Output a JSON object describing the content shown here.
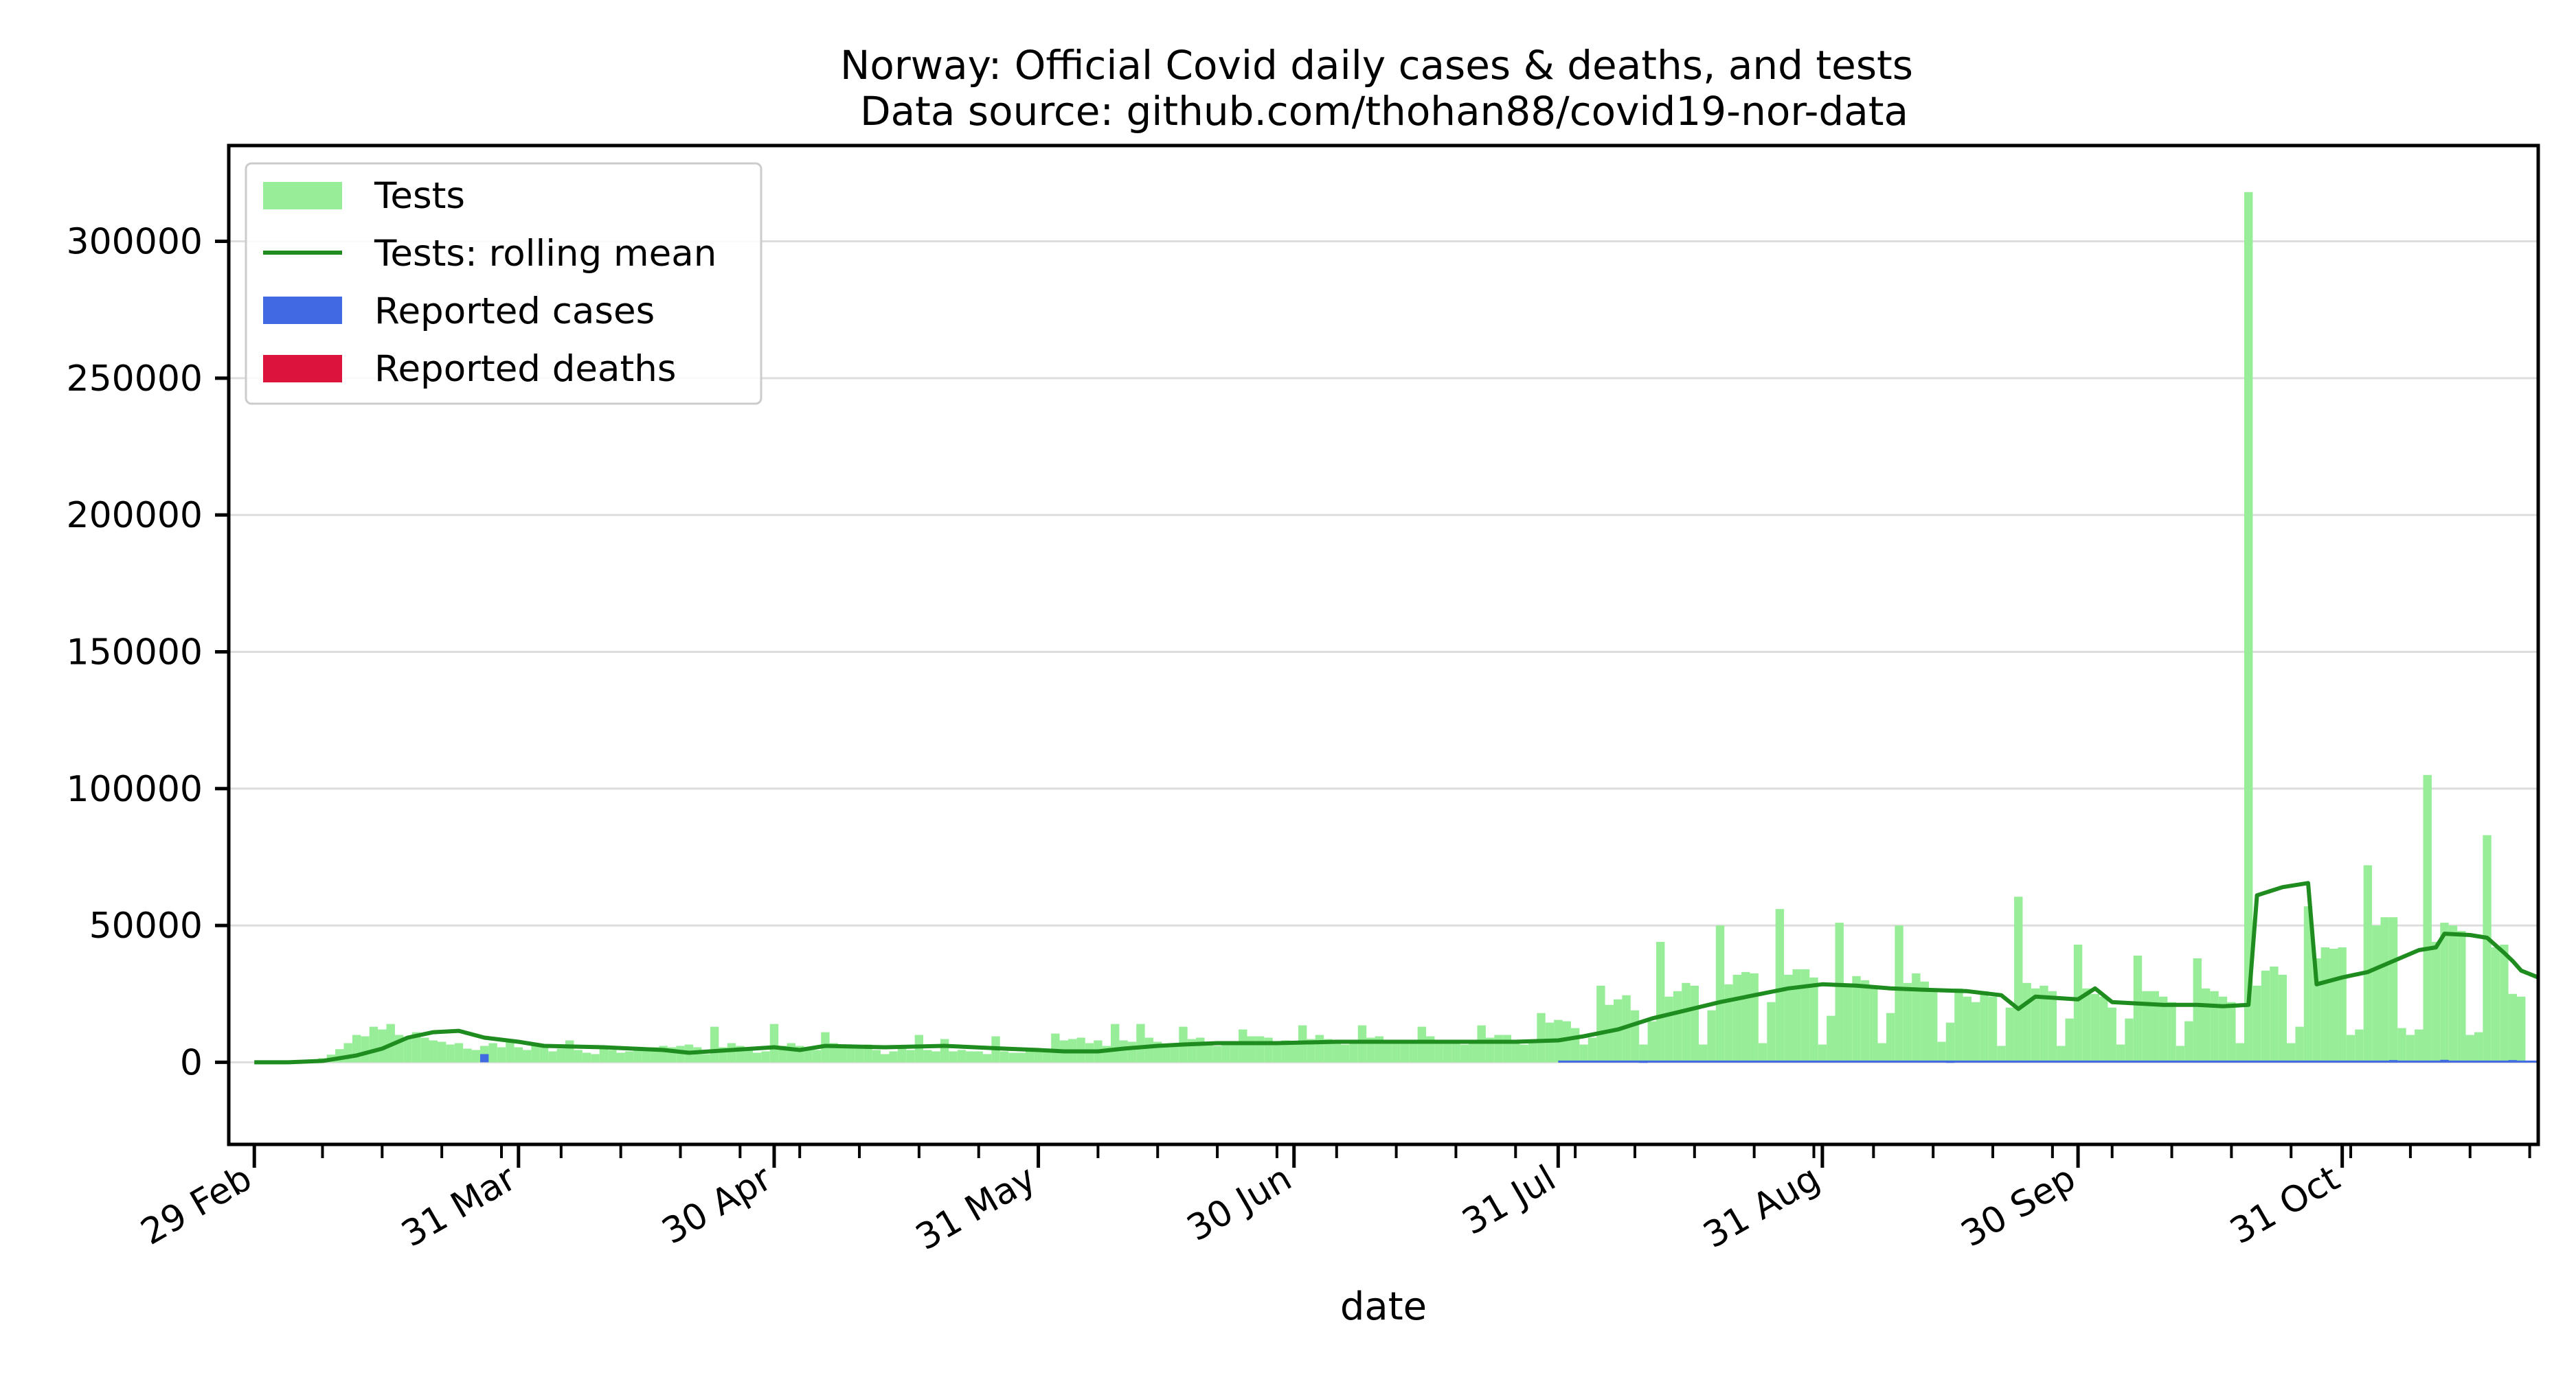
{
  "chart_data": {
    "type": "bar",
    "title": "Norway: Official Covid daily cases & deaths, and tests",
    "subtitle": "Data source: github.com/thohan88/covid19-nor-data",
    "xlabel": "date",
    "ylabel": "",
    "x_start": "2020-02-26",
    "x_end": "2020-11-23",
    "ylim": [
      -30000,
      335000
    ],
    "yticks": [
      0,
      50000,
      100000,
      150000,
      200000,
      250000,
      300000
    ],
    "ytick_labels": [
      "0",
      "50000",
      "100000",
      "150000",
      "200000",
      "250000",
      "300000"
    ],
    "xticks": [
      {
        "date": "2020-02-29",
        "label": "29 Feb"
      },
      {
        "date": "2020-03-31",
        "label": "31 Mar"
      },
      {
        "date": "2020-04-30",
        "label": "30 Apr"
      },
      {
        "date": "2020-05-31",
        "label": "31 May"
      },
      {
        "date": "2020-06-30",
        "label": "30 Jun"
      },
      {
        "date": "2020-07-31",
        "label": "31 Jul"
      },
      {
        "date": "2020-08-31",
        "label": "31 Aug"
      },
      {
        "date": "2020-09-30",
        "label": "30 Sep"
      },
      {
        "date": "2020-10-31",
        "label": "31 Oct"
      }
    ],
    "grid": "horizontal",
    "legend_position": "top-left",
    "colors": {
      "tests": "#98ee98",
      "rolling": "#1e8c1e",
      "cases": "#4169e1",
      "deaths": "#dc143c",
      "grid": "#dddddd"
    },
    "legend": [
      "Tests",
      "Tests: rolling mean",
      "Reported cases",
      "Reported deaths"
    ],
    "tests_start": "2020-02-29",
    "tests": [
      0,
      0,
      0,
      0,
      0,
      200,
      500,
      800,
      1500,
      2800,
      4800,
      7000,
      10000,
      9500,
      13000,
      12000,
      14000,
      10000,
      9000,
      11000,
      9000,
      8000,
      7500,
      6500,
      7000,
      5000,
      4500,
      6000,
      7000,
      5500,
      7500,
      5500,
      4500,
      7000,
      6500,
      4000,
      5000,
      8000,
      4500,
      3500,
      3000,
      5500,
      4500,
      3500,
      4000,
      5000,
      4500,
      5500,
      6000,
      5500,
      6000,
      6500,
      5500,
      3000,
      13000,
      5500,
      7000,
      6000,
      4500,
      3500,
      4000,
      14000,
      6000,
      7000,
      6000,
      5000,
      4500,
      11000,
      7000,
      6000,
      5500,
      5500,
      6500,
      4500,
      3000,
      4000,
      5000,
      4500,
      10000,
      4500,
      4000,
      8500,
      4000,
      4500,
      4000,
      4000,
      3000,
      9500,
      4000,
      3500,
      3500,
      4000,
      4500,
      4000,
      10500,
      8000,
      8500,
      9000,
      7000,
      8000,
      6000,
      14000,
      8000,
      7500,
      14000,
      9000,
      7500,
      6500,
      6000,
      13000,
      8500,
      9000,
      7500,
      6000,
      6500,
      7500,
      12000,
      9500,
      9500,
      9000,
      7500,
      8000,
      7000,
      13500,
      8500,
      10000,
      8500,
      7500,
      6500,
      7000,
      13500,
      9000,
      9500,
      8000,
      8000,
      7000,
      7500,
      13000,
      9500,
      8000,
      7500,
      7500,
      6500,
      7500,
      13500,
      9000,
      10000,
      10000,
      7500,
      6500,
      7500,
      18000,
      14500,
      15500,
      15000,
      12500,
      6500,
      9000,
      28000,
      21000,
      23000,
      24500,
      19000,
      6500,
      15000,
      44000,
      24000,
      26000,
      29000,
      28000,
      6500,
      19000,
      50000,
      28500,
      32000,
      33000,
      32500,
      7000,
      22000,
      56000,
      32000,
      34000,
      34000,
      31000,
      6500,
      17000,
      51000,
      28000,
      31500,
      30000,
      28000,
      7000,
      18000,
      50000,
      29000,
      32500,
      29500,
      26000,
      7500,
      14500,
      27000,
      24000,
      22000,
      26000,
      24000,
      6000,
      20000,
      60500,
      29000,
      27000,
      28000,
      26000,
      6000,
      16000,
      43000,
      27000,
      25000,
      24000,
      20000,
      6500,
      16000,
      39000,
      26000,
      26000,
      24000,
      22000,
      6000,
      15000,
      38000,
      27000,
      26000,
      24000,
      22000,
      7000,
      318000,
      28000,
      33500,
      35000,
      32000,
      7000,
      13000,
      57000,
      38000,
      42000,
      41500,
      42000,
      10000,
      12000,
      72000,
      50000,
      53000,
      53000,
      12500,
      10000,
      12000,
      105000,
      44000,
      51000,
      50000,
      48000,
      10000,
      11000,
      83000,
      42000,
      43000,
      25000,
      24000
    ],
    "rolling_mean": [
      [
        "2020-02-29",
        0
      ],
      [
        "2020-03-04",
        0
      ],
      [
        "2020-03-08",
        500
      ],
      [
        "2020-03-12",
        2500
      ],
      [
        "2020-03-15",
        5000
      ],
      [
        "2020-03-18",
        9000
      ],
      [
        "2020-03-21",
        11000
      ],
      [
        "2020-03-24",
        11500
      ],
      [
        "2020-03-27",
        9000
      ],
      [
        "2020-03-31",
        7500
      ],
      [
        "2020-04-03",
        6000
      ],
      [
        "2020-04-10",
        5500
      ],
      [
        "2020-04-17",
        4500
      ],
      [
        "2020-04-20",
        3500
      ],
      [
        "2020-04-30",
        5500
      ],
      [
        "2020-05-03",
        4500
      ],
      [
        "2020-05-06",
        6000
      ],
      [
        "2020-05-13",
        5500
      ],
      [
        "2020-05-20",
        6000
      ],
      [
        "2020-05-27",
        5000
      ],
      [
        "2020-05-31",
        4500
      ],
      [
        "2020-06-03",
        4000
      ],
      [
        "2020-06-07",
        4000
      ],
      [
        "2020-06-10",
        5000
      ],
      [
        "2020-06-14",
        6000
      ],
      [
        "2020-06-17",
        6500
      ],
      [
        "2020-06-21",
        7000
      ],
      [
        "2020-06-28",
        7000
      ],
      [
        "2020-07-05",
        7500
      ],
      [
        "2020-07-12",
        7500
      ],
      [
        "2020-07-19",
        7500
      ],
      [
        "2020-07-26",
        7500
      ],
      [
        "2020-07-31",
        8000
      ],
      [
        "2020-08-03",
        9500
      ],
      [
        "2020-08-07",
        12000
      ],
      [
        "2020-08-11",
        16000
      ],
      [
        "2020-08-15",
        19000
      ],
      [
        "2020-08-19",
        22000
      ],
      [
        "2020-08-23",
        24500
      ],
      [
        "2020-08-27",
        27000
      ],
      [
        "2020-08-31",
        28500
      ],
      [
        "2020-09-04",
        28000
      ],
      [
        "2020-09-08",
        27000
      ],
      [
        "2020-09-12",
        26500
      ],
      [
        "2020-09-17",
        26000
      ],
      [
        "2020-09-21",
        24500
      ],
      [
        "2020-09-23",
        19500
      ],
      [
        "2020-09-25",
        24000
      ],
      [
        "2020-09-30",
        23000
      ],
      [
        "2020-10-02",
        27000
      ],
      [
        "2020-10-04",
        22000
      ],
      [
        "2020-10-10",
        21000
      ],
      [
        "2020-10-14",
        21000
      ],
      [
        "2020-10-17",
        20500
      ],
      [
        "2020-10-20",
        21000
      ],
      [
        "2020-10-21",
        61000
      ],
      [
        "2020-10-24",
        64000
      ],
      [
        "2020-10-27",
        65500
      ],
      [
        "2020-10-28",
        28500
      ],
      [
        "2020-10-31",
        31000
      ],
      [
        "2020-11-03",
        33000
      ],
      [
        "2020-11-06",
        37000
      ],
      [
        "2020-11-09",
        41000
      ],
      [
        "2020-11-11",
        42000
      ],
      [
        "2020-11-12",
        47000
      ],
      [
        "2020-11-15",
        46500
      ],
      [
        "2020-11-17",
        45500
      ],
      [
        "2020-11-19",
        40000
      ],
      [
        "2020-11-20",
        37000
      ],
      [
        "2020-11-21",
        33500
      ],
      [
        "2020-11-23",
        31000
      ]
    ],
    "cases": [
      [
        "2020-03-27",
        3000
      ],
      [
        "2020-08-10",
        300
      ],
      [
        "2020-09-15",
        300
      ],
      [
        "2020-10-25",
        500
      ],
      [
        "2020-11-02",
        600
      ],
      [
        "2020-11-06",
        800
      ],
      [
        "2020-11-12",
        900
      ],
      [
        "2020-11-20",
        800
      ]
    ],
    "deaths": []
  }
}
